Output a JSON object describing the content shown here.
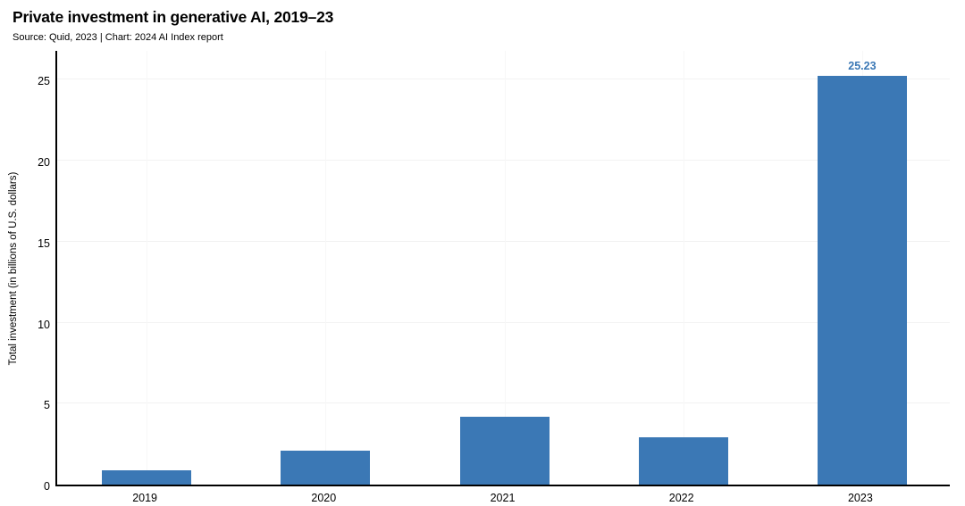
{
  "header": {
    "title": "Private investment in generative AI, 2019–23",
    "subtitle": "Source: Quid, 2023 | Chart: 2024 AI Index report"
  },
  "colors": {
    "bar": "#3b78b5",
    "value_label": "#3b78b5",
    "axis": "#000000",
    "grid_horizontal": "#f2f2f2",
    "grid_vertical": "#f7f7f7",
    "background": "#ffffff",
    "text": "#000000"
  },
  "chart_data": {
    "type": "bar",
    "title": "Private investment in generative AI, 2019–23",
    "subtitle": "Source: Quid, 2023 | Chart: 2024 AI Index report",
    "categories": [
      "2019",
      "2020",
      "2021",
      "2022",
      "2023"
    ],
    "values": [
      0.9,
      2.1,
      4.2,
      2.9,
      25.23
    ],
    "value_labels": [
      null,
      null,
      null,
      null,
      "25.23"
    ],
    "xlabel": "",
    "ylabel": "Total investment (in billions of U.S. dollars)",
    "yticks": [
      0,
      5,
      10,
      15,
      20,
      25
    ],
    "ylim": [
      0,
      26.9
    ],
    "grid": "faint horizontal lines at y ticks and faint vertical lines at category centers",
    "legend": "none",
    "bar_color": "#3b78b5",
    "single_series": true
  }
}
